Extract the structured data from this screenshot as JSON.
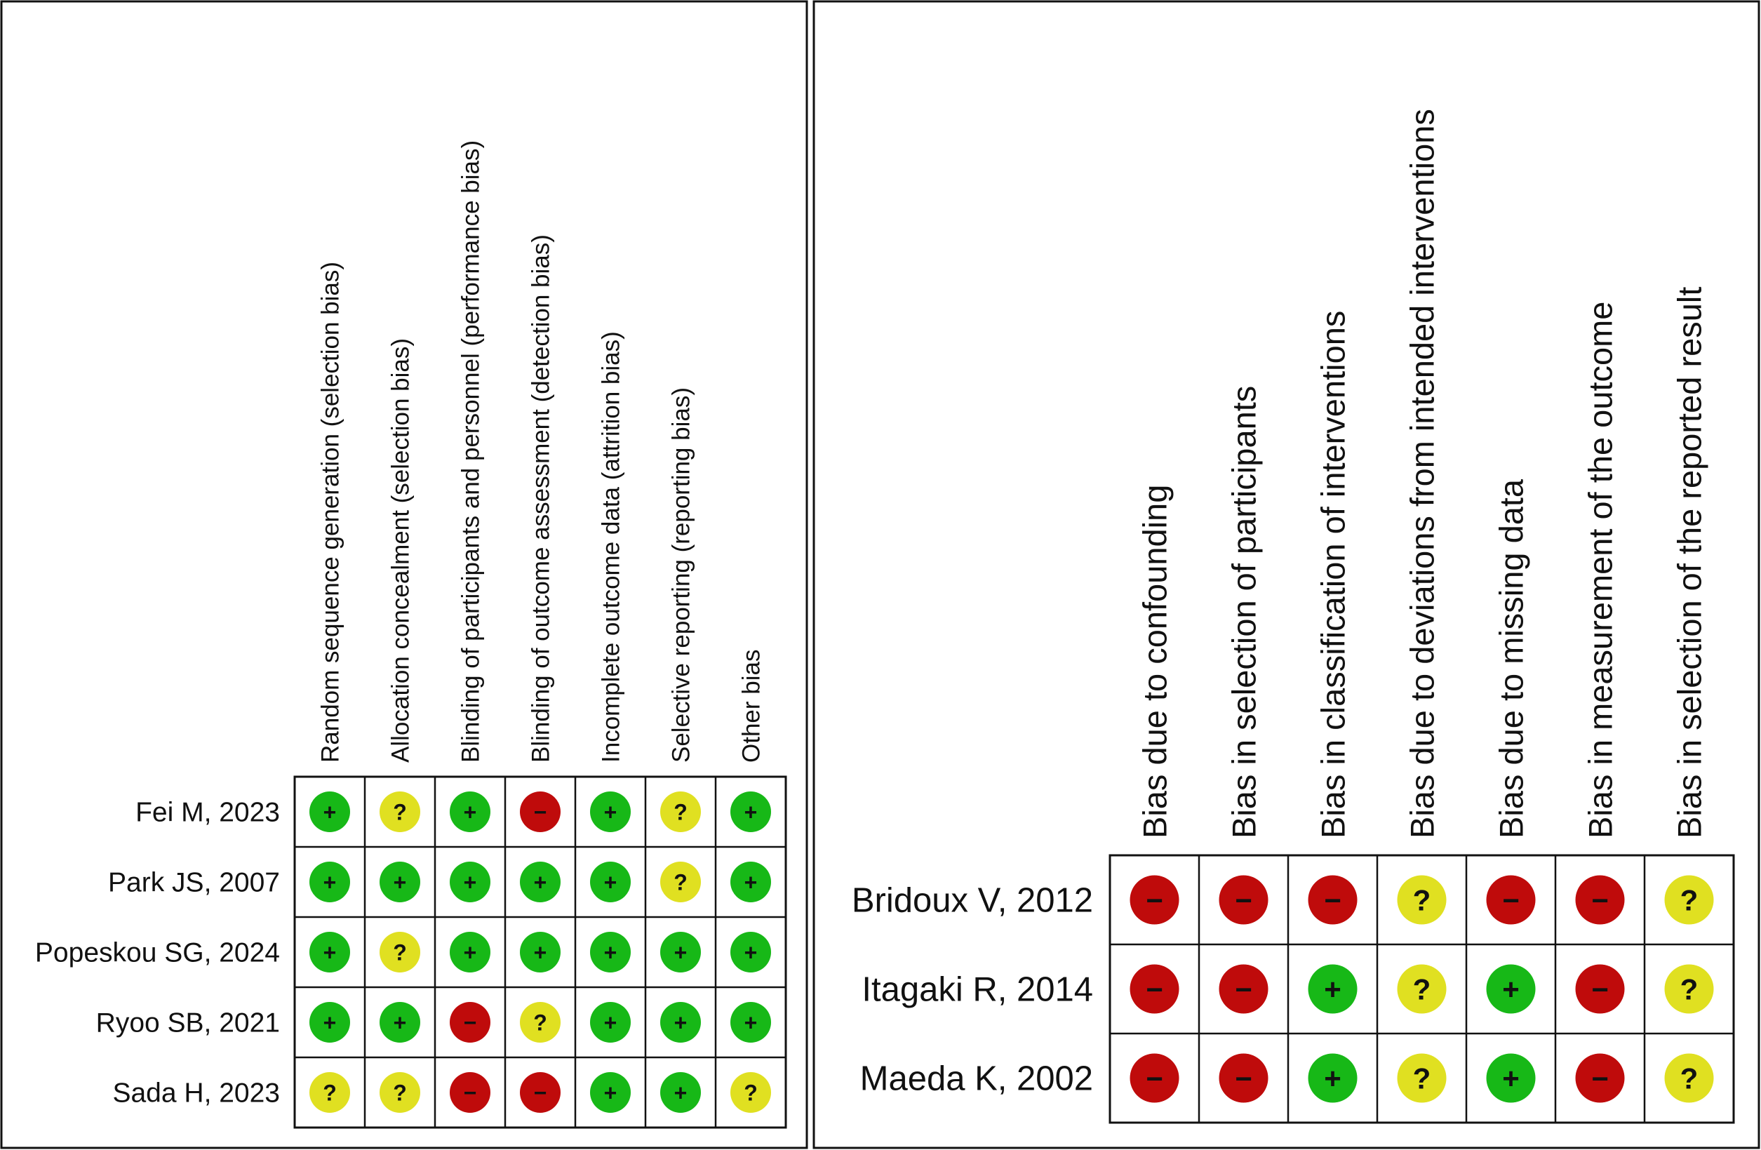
{
  "colors": {
    "low": "#17b817",
    "high": "#bf0b0b",
    "unclear": "#e0e021",
    "grid": "#111111",
    "frame": "#111111"
  },
  "symbols": {
    "low": "+",
    "high": "−",
    "unclear": "?"
  },
  "chart_data": [
    {
      "type": "table",
      "title": "",
      "columns": [
        "Random sequence generation (selection bias)",
        "Allocation concealment (selection bias)",
        "Blinding of participants and personnel (performance bias)",
        "Blinding of outcome assessment (detection bias)",
        "Incomplete outcome data (attrition bias)",
        "Selective reporting (reporting bias)",
        "Other bias"
      ],
      "rows": [
        {
          "study": "Fei M, 2023",
          "ratings": [
            "low",
            "unclear",
            "low",
            "high",
            "low",
            "unclear",
            "low"
          ]
        },
        {
          "study": "Park JS, 2007",
          "ratings": [
            "low",
            "low",
            "low",
            "low",
            "low",
            "unclear",
            "low"
          ]
        },
        {
          "study": "Popeskou SG, 2024",
          "ratings": [
            "low",
            "unclear",
            "low",
            "low",
            "low",
            "low",
            "low"
          ]
        },
        {
          "study": "Ryoo SB, 2021",
          "ratings": [
            "low",
            "low",
            "high",
            "unclear",
            "low",
            "low",
            "low"
          ]
        },
        {
          "study": "Sada H, 2023",
          "ratings": [
            "unclear",
            "unclear",
            "high",
            "high",
            "low",
            "low",
            "unclear"
          ]
        }
      ]
    },
    {
      "type": "table",
      "title": "",
      "columns": [
        "Bias due to confounding",
        "Bias in selection of participants",
        "Bias in classification of interventions",
        "Bias due to deviations from intended interventions",
        "Bias due to missing data",
        "Bias in measurement of the outcome",
        "Bias in selection of the reported result"
      ],
      "rows": [
        {
          "study": "Bridoux V, 2012",
          "ratings": [
            "high",
            "high",
            "high",
            "unclear",
            "high",
            "high",
            "unclear"
          ]
        },
        {
          "study": "Itagaki R, 2014",
          "ratings": [
            "high",
            "high",
            "low",
            "unclear",
            "low",
            "high",
            "unclear"
          ]
        },
        {
          "study": "Maeda K, 2002",
          "ratings": [
            "high",
            "high",
            "low",
            "unclear",
            "low",
            "high",
            "unclear"
          ]
        }
      ]
    }
  ]
}
